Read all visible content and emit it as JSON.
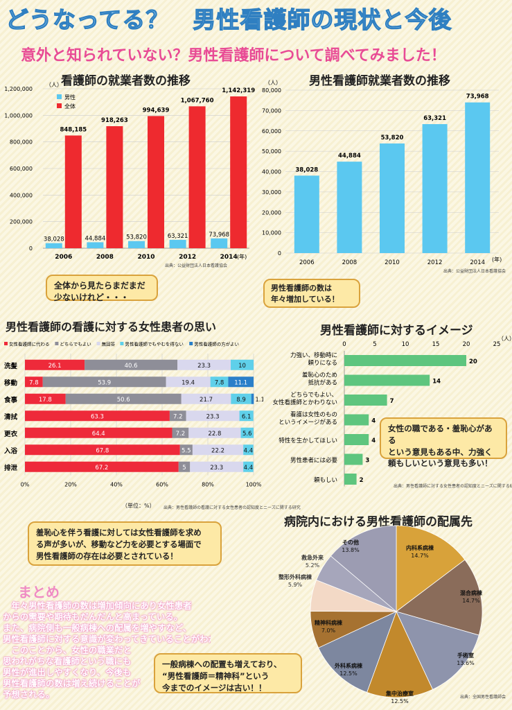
{
  "header": {
    "title": "どうなってる？　男性看護師の現状と今後",
    "subtitle": "意外と知られていない？男性看護師について調べてみました！"
  },
  "chart1": {
    "title": "看護師の就業者数の推移",
    "yunit": "（人）",
    "xunit": "(年)",
    "source": "出典：公益財団法人日本看護協会",
    "bubble": [
      "全体から見たらまだまだ",
      "少ないけれど・・・"
    ]
  },
  "chart2": {
    "title": "男性看護師就業者数の推移",
    "yunit": "（人）",
    "xunit": "(年)",
    "source": "出典：公益財団法人日本看護協会",
    "bubble": [
      "男性看護師の数は",
      "年々増加している！"
    ]
  },
  "chart3": {
    "title": "男性看護師の看護に対する女性患者の思い",
    "unit": "（単位：%）",
    "source": "出典：男性看護師の看護に対する女性患者の認知度とニーズに関する研究",
    "bubble": [
      "羞恥心を伴う看護に対しては女性看護師を求め",
      "る声が多いが、移動など力を必要とする場面で",
      "男性看護師の存在は必要とされている！"
    ]
  },
  "chart4": {
    "title": "男性看護師に対するイメージ",
    "unit": "（人）",
    "source": "出典：男性看護師に対する女性患者の認知度とニーズに関する研究",
    "bubble": [
      "女性の職である・羞恥心がある",
      "という意見もある中、力強く",
      "頼もしいという意見も多い！"
    ]
  },
  "chart5": {
    "title": "病院内における男性看護師の配属先",
    "source": "出典：全国男性看護師会",
    "bubble": [
      "一般病棟への配置も増えており、",
      "“男性看護師＝精神科”という",
      "今までのイメージは古い！！"
    ]
  },
  "matome": {
    "heading": "まとめ",
    "lines": [
      "　年々男性看護師の数は増加傾向にあり女性患者",
      "からの需要や期待もだんだんと高まっている。",
      "また、病院側も一般病棟への配属を増やすなど、",
      "男性看護師に対する意識が変わってきていることがわかる。",
      "　このことから、女性の職業だと",
      "思われがちな看護師という職にも",
      "男性が進出しやすくなり、今後も",
      "男性看護師の数は増え続けることが",
      "予想される。"
    ]
  },
  "chart_data": [
    {
      "type": "bar",
      "title": "看護師の就業者数の推移",
      "categories": [
        "2006",
        "2008",
        "2010",
        "2012",
        "2014"
      ],
      "series": [
        {
          "name": "男性",
          "color": "#5bc8f0",
          "values": [
            38028,
            44884,
            53820,
            63321,
            73968
          ],
          "labels": [
            "38,028",
            "44,884",
            "53,820",
            "63,321",
            "73,968"
          ]
        },
        {
          "name": "全体",
          "color": "#ee2a2f",
          "values": [
            848185,
            918263,
            994639,
            1067760,
            1142319
          ],
          "labels": [
            "848,185",
            "918,263",
            "994,639",
            "1,067,760",
            "1,142,319"
          ]
        }
      ],
      "ylim": [
        0,
        1200000
      ],
      "yticks": [
        "0",
        "200,000",
        "400,000",
        "600,000",
        "800,000",
        "1,000,000",
        "1,200,000"
      ],
      "grid": true,
      "legend": "top-left"
    },
    {
      "type": "bar",
      "title": "男性看護師就業者数の推移",
      "categories": [
        "2006",
        "2008",
        "2010",
        "2012",
        "2014"
      ],
      "values": [
        38028,
        44884,
        53820,
        63321,
        73968
      ],
      "labels": [
        "38,028",
        "44,884",
        "53,820",
        "63,321",
        "73,968"
      ],
      "color": "#5bc8f0",
      "ylim": [
        0,
        80000
      ],
      "yticks": [
        "0",
        "10,000",
        "20,000",
        "30,000",
        "40,000",
        "50,000",
        "60,000",
        "70,000",
        "80,000"
      ],
      "grid": true
    },
    {
      "type": "bar",
      "orientation": "horizontal-stacked-100",
      "title": "男性看護師の看護に対する女性患者の思い",
      "categories": [
        "洗髪",
        "移動",
        "食事",
        "清拭",
        "更衣",
        "入浴",
        "排泄"
      ],
      "series": [
        {
          "name": "女性看護師に代わる",
          "color": "#ee2a3a",
          "values": [
            26.1,
            7.8,
            17.8,
            63.3,
            64.4,
            67.8,
            67.2
          ]
        },
        {
          "name": "どちらでもよい",
          "color": "#8e8e98",
          "values": [
            40.6,
            53.9,
            50.6,
            7.2,
            7.2,
            5.5,
            5
          ]
        },
        {
          "name": "無回答",
          "color": "#d9d8ee",
          "values": [
            23.3,
            19.4,
            21.7,
            23.3,
            22.8,
            22.2,
            23.3
          ]
        },
        {
          "name": "男性看護師でもやむを得ない",
          "color": "#5fd0ea",
          "values": [
            10,
            7.8,
            8.9,
            6.1,
            5.6,
            4.4,
            4.4
          ]
        },
        {
          "name": "男性看護師の方がよい",
          "color": "#2a7fc9",
          "values": [
            0,
            11.1,
            1.1,
            0,
            0,
            0,
            0
          ]
        }
      ],
      "xticks": [
        "0%",
        "20%",
        "40%",
        "60%",
        "80%",
        "100%"
      ],
      "legend": "top"
    },
    {
      "type": "bar",
      "orientation": "horizontal",
      "title": "男性看護師に対するイメージ",
      "categories": [
        [
          "力強い、移動時に",
          "頼りになる"
        ],
        [
          "羞恥心のため",
          "抵抗がある"
        ],
        [
          "どちらでもよい、",
          "女性看護師とかわりない"
        ],
        [
          "看護は女性のもの",
          "というイメージがある"
        ],
        [
          "特性を生かしてほしい"
        ],
        [
          "男性患者には必要"
        ],
        [
          "頼もしい"
        ]
      ],
      "values": [
        20,
        14,
        7,
        4,
        4,
        3,
        2
      ],
      "color": "#5ec57e",
      "xlim": [
        0,
        25
      ],
      "xticks": [
        "0",
        "5",
        "10",
        "15",
        "20",
        "25"
      ]
    },
    {
      "type": "pie",
      "title": "病院内における男性看護師の配属先",
      "slices": [
        {
          "label": "内科系病棟",
          "value": 14.7,
          "pct": "14.7%",
          "color": "#d8a23a"
        },
        {
          "label": "混合病棟",
          "value": 14.7,
          "pct": "14.7%",
          "color": "#8a6c5a"
        },
        {
          "label": "手術室",
          "value": 13.6,
          "pct": "13.6%",
          "color": "#8e94ac"
        },
        {
          "label": "集中治療室",
          "value": 12.5,
          "pct": "12.5%",
          "color": "#c2892c"
        },
        {
          "label": "外科系病棟",
          "value": 12.5,
          "pct": "12.5%",
          "color": "#7d879f"
        },
        {
          "label": "精神科病棟",
          "value": 7.0,
          "pct": "7.0%",
          "color": "#a67231"
        },
        {
          "label": "整形外科病棟",
          "value": 5.9,
          "pct": "5.9%",
          "color": "#f3d9c6"
        },
        {
          "label": "救急外来",
          "value": 5.2,
          "pct": "5.2%",
          "color": "#a6a6bb"
        },
        {
          "label": "その他",
          "value": 13.8,
          "pct": "13.8%",
          "color": "#9c9cb2"
        }
      ]
    }
  ]
}
